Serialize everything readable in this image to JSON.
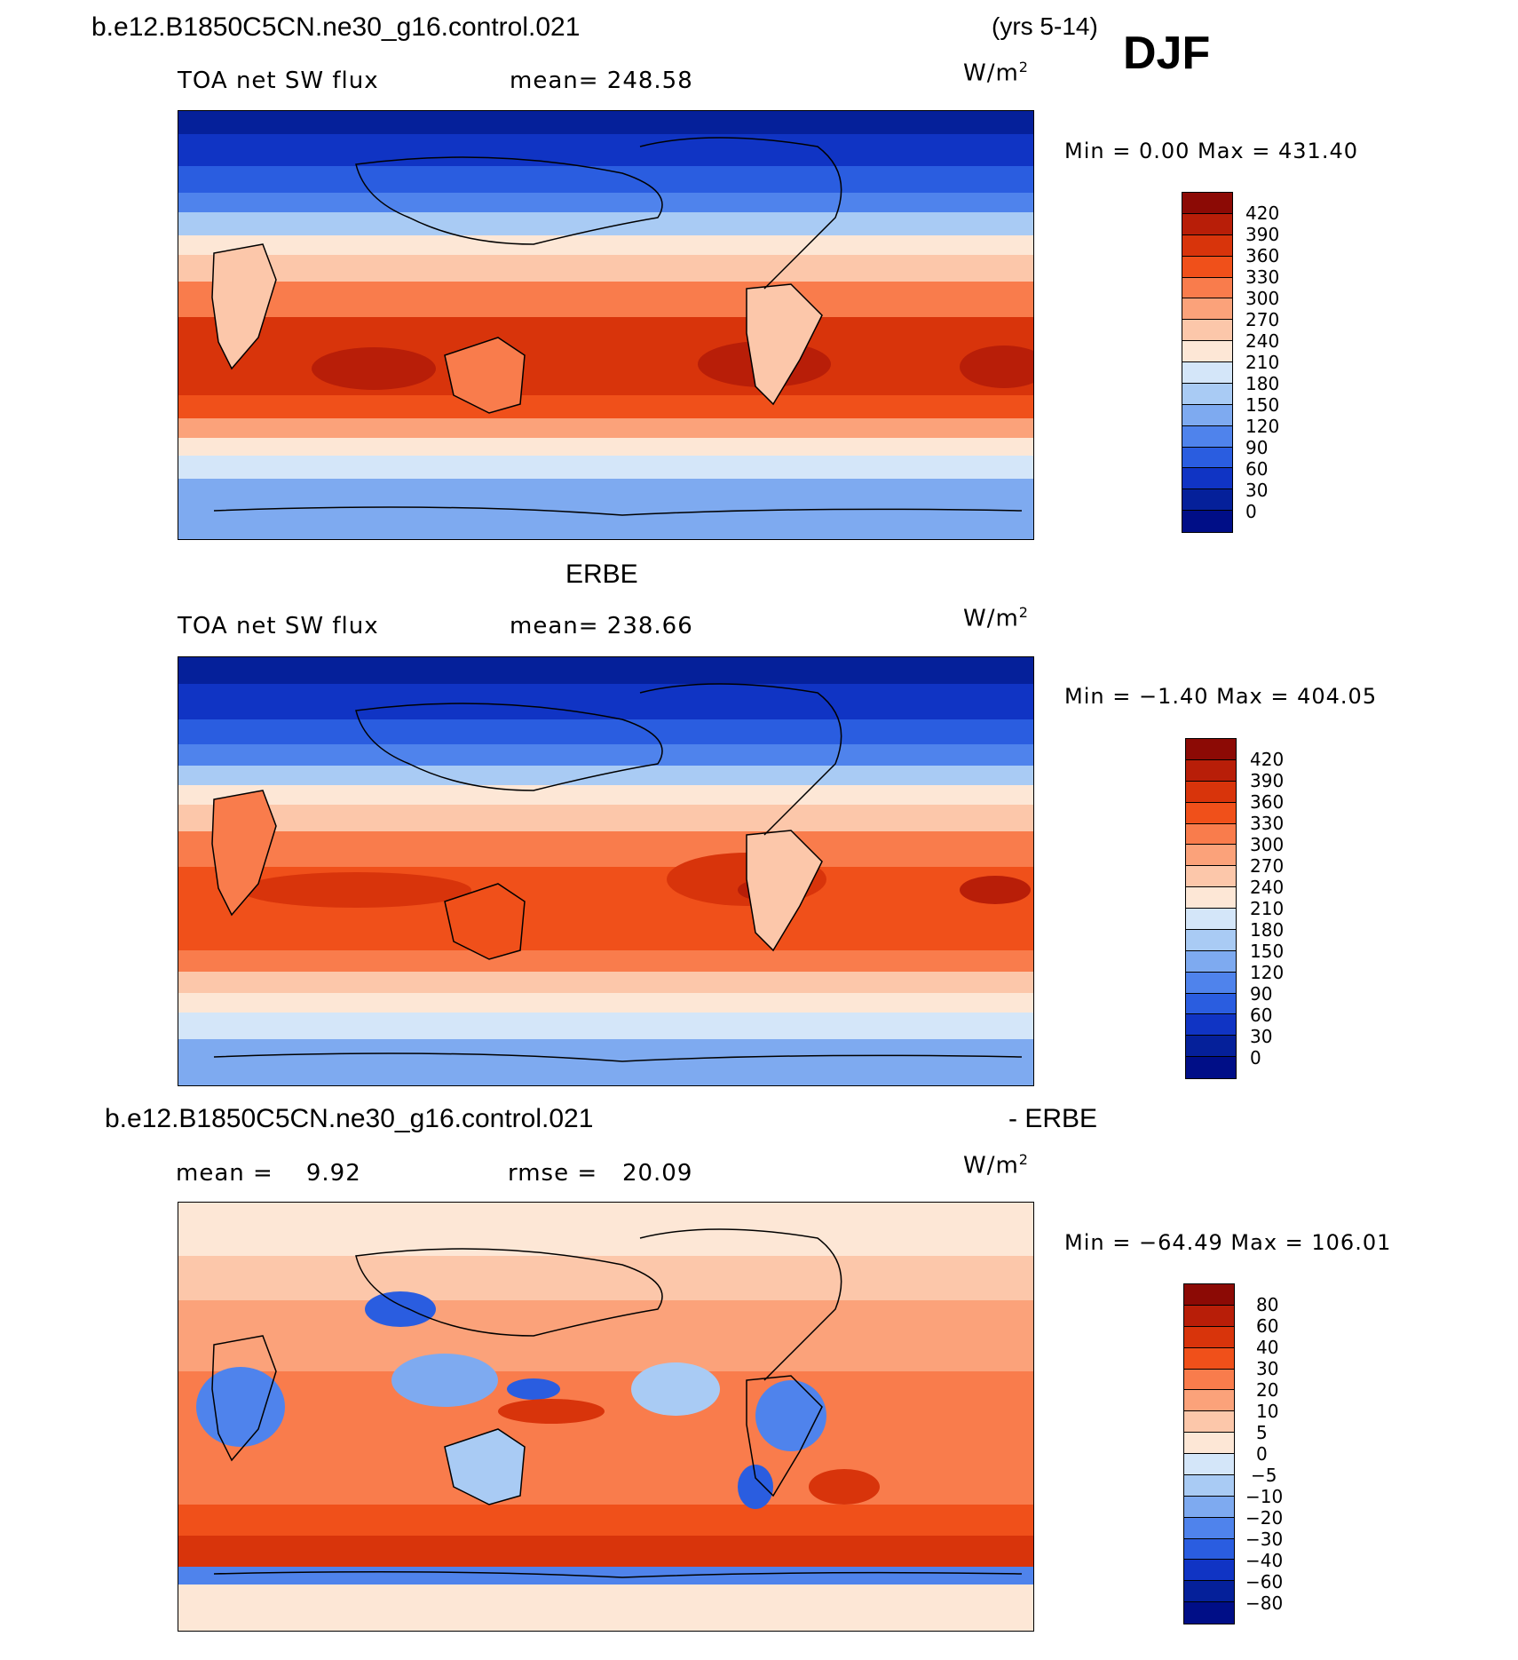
{
  "header": {
    "case_title": "b.e12.B1850C5CN.ne30_g16.control.021",
    "years": "(yrs 5-14)",
    "season": "DJF"
  },
  "panels": [
    {
      "id": "model",
      "subtitle": "",
      "left_label": "TOA net SW flux",
      "center_label": "mean= 248.58",
      "units_base": "W/m",
      "units_exp": "2",
      "minmax": "Min =    0.00 Max = 431.40",
      "colorbar": {
        "levels": [
          "420",
          "390",
          "360",
          "330",
          "300",
          "270",
          "240",
          "210",
          "180",
          "150",
          "120",
          "90",
          "60",
          "30",
          "0"
        ],
        "colors": [
          "#8c0a05",
          "#b81e08",
          "#d8340b",
          "#f0501a",
          "#f97c4c",
          "#fba27a",
          "#fcc7aa",
          "#fde7d6",
          "#d4e6f9",
          "#a9cbf4",
          "#7eaaf0",
          "#4f83ec",
          "#2a5de0",
          "#1034c4",
          "#05209a",
          "#000e87"
        ]
      }
    },
    {
      "id": "obs",
      "subtitle": "ERBE",
      "left_label": "TOA net SW flux",
      "center_label": "mean= 238.66",
      "units_base": "W/m",
      "units_exp": "2",
      "minmax": "Min =  −1.40 Max = 404.05",
      "colorbar": {
        "levels": [
          "420",
          "390",
          "360",
          "330",
          "300",
          "270",
          "240",
          "210",
          "180",
          "150",
          "120",
          "90",
          "60",
          "30",
          "0"
        ],
        "colors": [
          "#8c0a05",
          "#b81e08",
          "#d8340b",
          "#f0501a",
          "#f97c4c",
          "#fba27a",
          "#fcc7aa",
          "#fde7d6",
          "#d4e6f9",
          "#a9cbf4",
          "#7eaaf0",
          "#4f83ec",
          "#2a5de0",
          "#1034c4",
          "#05209a",
          "#000e87"
        ]
      }
    },
    {
      "id": "diff",
      "subtitle_left": "b.e12.B1850C5CN.ne30_g16.control.021",
      "subtitle_right": "- ERBE",
      "left_label": "mean =    9.92",
      "center_label": "rmse =   20.09",
      "units_base": "W/m",
      "units_exp": "2",
      "minmax": "Min = −64.49 Max = 106.01",
      "colorbar": {
        "levels": [
          "80",
          "60",
          "40",
          "30",
          "20",
          "10",
          "5",
          "0",
          "−5",
          "−10",
          "−20",
          "−30",
          "−40",
          "−60",
          "−80"
        ],
        "colors": [
          "#8c0a05",
          "#b81e08",
          "#d8340b",
          "#f0501a",
          "#f97c4c",
          "#fba27a",
          "#fcc7aa",
          "#fde7d6",
          "#d4e6f9",
          "#a9cbf4",
          "#7eaaf0",
          "#4f83ec",
          "#2a5de0",
          "#1034c4",
          "#05209a",
          "#000e87"
        ]
      }
    }
  ]
}
